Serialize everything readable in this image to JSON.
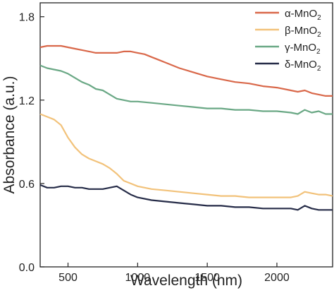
{
  "chart_data": {
    "type": "line",
    "title": "",
    "xlabel": "Wavelength (nm)",
    "ylabel": "Absorbance (a.u.)",
    "xlim": [
      300,
      2400
    ],
    "ylim": [
      0.0,
      1.9
    ],
    "x_ticks": [
      500,
      1000,
      1500,
      2000
    ],
    "x_tick_labels": [
      "500",
      "1000",
      "1500",
      "2000"
    ],
    "y_ticks": [
      0.0,
      0.6,
      1.2,
      1.8
    ],
    "y_tick_labels": [
      "0.0",
      "0.6",
      "1.2",
      "1.8"
    ],
    "grid": false,
    "legend_position": "top-right",
    "series": [
      {
        "name_main": "α-MnO",
        "name_sub": "2",
        "color": "#d9684a",
        "x": [
          300,
          350,
          400,
          450,
          500,
          550,
          600,
          650,
          700,
          750,
          800,
          850,
          900,
          950,
          1000,
          1050,
          1100,
          1150,
          1200,
          1300,
          1400,
          1500,
          1600,
          1700,
          1800,
          1900,
          2000,
          2100,
          2150,
          2200,
          2250,
          2300,
          2350,
          2400
        ],
        "y": [
          1.58,
          1.59,
          1.59,
          1.59,
          1.58,
          1.57,
          1.56,
          1.55,
          1.54,
          1.54,
          1.54,
          1.54,
          1.55,
          1.55,
          1.54,
          1.53,
          1.51,
          1.49,
          1.47,
          1.43,
          1.4,
          1.37,
          1.35,
          1.33,
          1.32,
          1.3,
          1.29,
          1.27,
          1.26,
          1.27,
          1.25,
          1.24,
          1.23,
          1.23
        ]
      },
      {
        "name_main": "β-MnO",
        "name_sub": "2",
        "color": "#f2c27a",
        "x": [
          300,
          350,
          400,
          450,
          500,
          550,
          600,
          650,
          700,
          750,
          800,
          850,
          900,
          950,
          1000,
          1100,
          1200,
          1300,
          1400,
          1500,
          1600,
          1700,
          1800,
          1900,
          2000,
          2100,
          2150,
          2200,
          2250,
          2300,
          2350,
          2400
        ],
        "y": [
          1.1,
          1.08,
          1.06,
          1.02,
          0.93,
          0.86,
          0.81,
          0.78,
          0.76,
          0.74,
          0.71,
          0.67,
          0.62,
          0.6,
          0.58,
          0.56,
          0.55,
          0.54,
          0.53,
          0.52,
          0.51,
          0.51,
          0.5,
          0.5,
          0.5,
          0.5,
          0.51,
          0.54,
          0.53,
          0.52,
          0.52,
          0.51
        ]
      },
      {
        "name_main": "γ-MnO",
        "name_sub": "2",
        "color": "#6aa885",
        "x": [
          300,
          350,
          400,
          450,
          500,
          550,
          600,
          650,
          700,
          750,
          800,
          850,
          900,
          950,
          1000,
          1100,
          1200,
          1300,
          1400,
          1500,
          1600,
          1700,
          1800,
          1900,
          2000,
          2100,
          2150,
          2200,
          2250,
          2300,
          2350,
          2400
        ],
        "y": [
          1.45,
          1.43,
          1.42,
          1.41,
          1.39,
          1.36,
          1.33,
          1.31,
          1.28,
          1.27,
          1.24,
          1.21,
          1.2,
          1.19,
          1.19,
          1.18,
          1.17,
          1.16,
          1.15,
          1.14,
          1.14,
          1.13,
          1.13,
          1.12,
          1.12,
          1.11,
          1.1,
          1.13,
          1.11,
          1.12,
          1.1,
          1.1
        ]
      },
      {
        "name_main": "δ-MnO",
        "name_sub": "2",
        "color": "#262c48",
        "x": [
          300,
          350,
          400,
          450,
          500,
          550,
          600,
          650,
          700,
          750,
          800,
          850,
          900,
          950,
          1000,
          1100,
          1200,
          1300,
          1400,
          1500,
          1600,
          1700,
          1800,
          1900,
          2000,
          2100,
          2150,
          2200,
          2250,
          2300,
          2350,
          2400
        ],
        "y": [
          0.59,
          0.57,
          0.57,
          0.58,
          0.58,
          0.57,
          0.57,
          0.56,
          0.56,
          0.56,
          0.57,
          0.58,
          0.55,
          0.52,
          0.5,
          0.48,
          0.47,
          0.46,
          0.45,
          0.44,
          0.44,
          0.43,
          0.43,
          0.42,
          0.42,
          0.42,
          0.41,
          0.44,
          0.42,
          0.41,
          0.41,
          0.41
        ]
      }
    ]
  }
}
